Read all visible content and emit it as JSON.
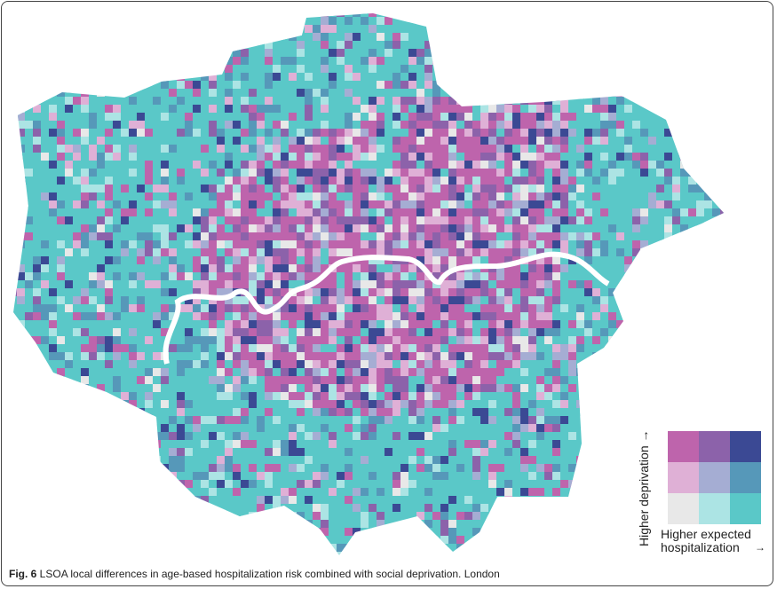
{
  "figure": {
    "caption_label": "Fig. 6",
    "caption_text": " LSOA local differences in age-based hospitalization risk combined with social deprivation. London"
  },
  "legend": {
    "y_label": "Higher deprivation →",
    "x_label": "Higher expected hospitalization",
    "x_arrow": "→",
    "colors": [
      [
        "#be64ac",
        "#8c62aa",
        "#3b4994"
      ],
      [
        "#dfb0d6",
        "#a5add3",
        "#5698b9"
      ],
      [
        "#e8e8e8",
        "#ace4e4",
        "#5ac8c8"
      ]
    ]
  },
  "map": {
    "river_color": "#ffffff",
    "region": "London"
  }
}
